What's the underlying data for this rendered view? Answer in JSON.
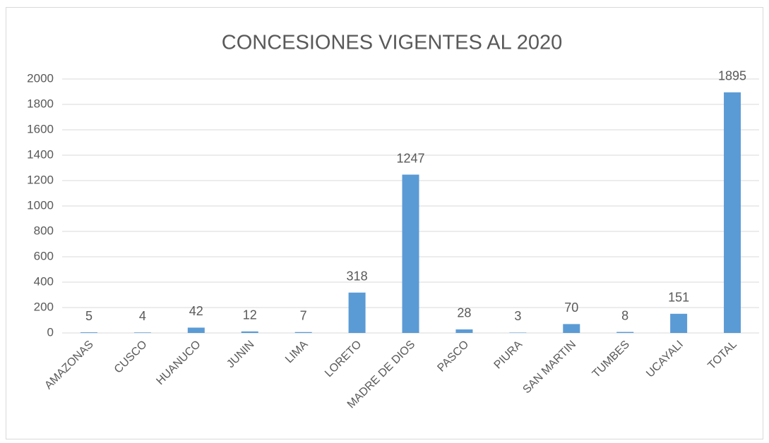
{
  "chart_data": {
    "type": "bar",
    "title": "CONCESIONES VIGENTES AL 2020",
    "categories": [
      "AMAZONAS",
      "CUSCO",
      "HUANUCO",
      "JUNIN",
      "LIMA",
      "LORETO",
      "MADRE DE DIOS",
      "PASCO",
      "PIURA",
      "SAN MARTIN",
      "TUMBES",
      "UCAYALI",
      "TOTAL"
    ],
    "values": [
      5,
      4,
      42,
      12,
      7,
      318,
      1247,
      28,
      3,
      70,
      8,
      151,
      1895
    ],
    "color": "#5b9bd5",
    "ylim": [
      0,
      2000
    ],
    "yticks": [
      0,
      200,
      400,
      600,
      800,
      1000,
      1200,
      1400,
      1600,
      1800,
      2000
    ],
    "grid": true
  }
}
